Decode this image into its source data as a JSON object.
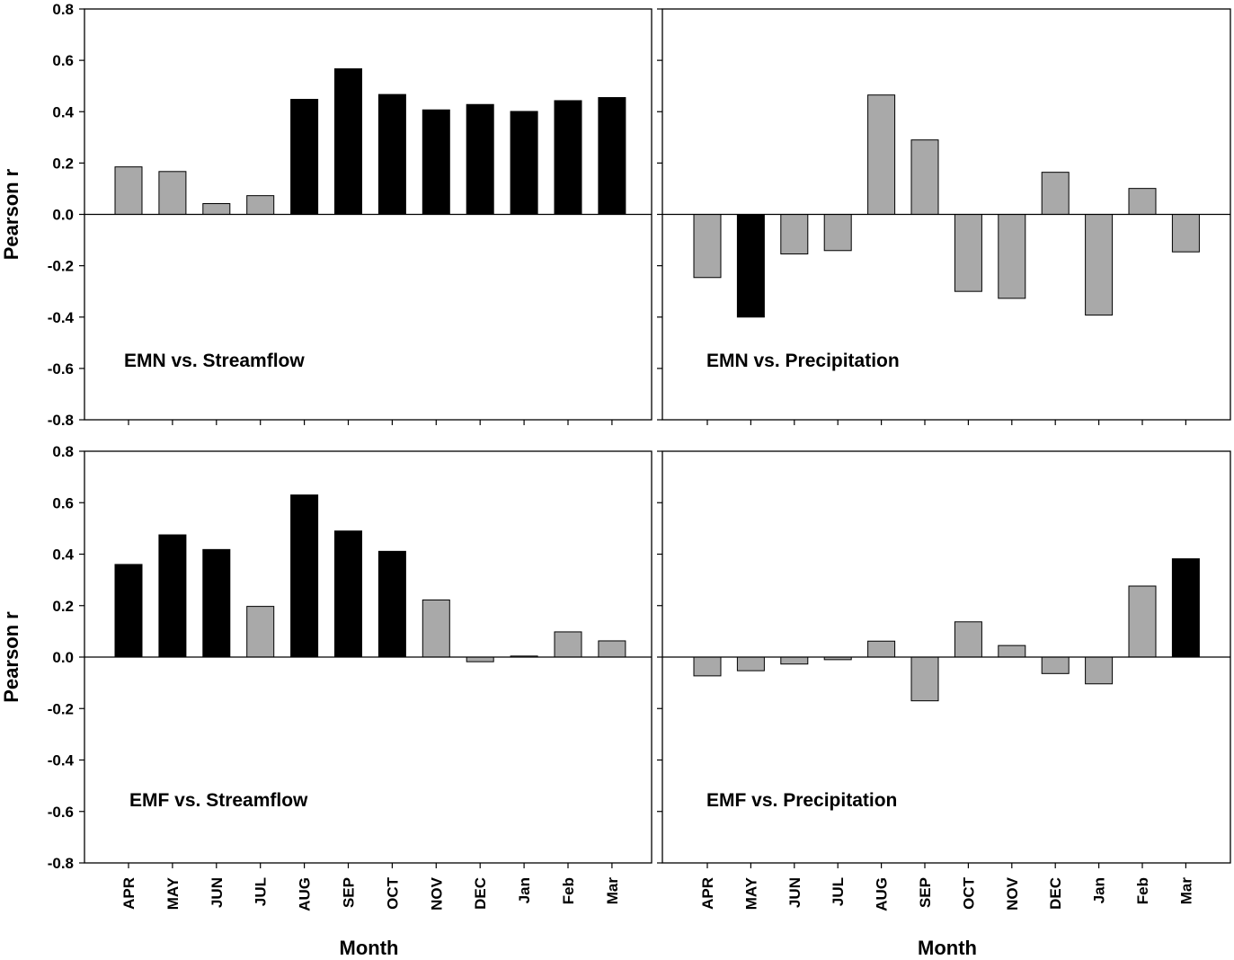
{
  "colors": {
    "significant": "#000000",
    "not_significant": "#a9a9a9",
    "axis": "#000000",
    "background": "#ffffff"
  },
  "chart_data": [
    {
      "type": "bar",
      "title": "EMN vs. Streamflow",
      "xlabel": "",
      "ylabel": "Pearson r",
      "ylim": [
        -0.8,
        0.8
      ],
      "yticks": [
        "0.8",
        "0.6",
        "0.4",
        "0.2",
        "0.0",
        "-0.2",
        "-0.4",
        "-0.6",
        "-0.8"
      ],
      "categories": [
        "APR",
        "MAY",
        "JUN",
        "JUL",
        "AUG",
        "SEP",
        "OCT",
        "NOV",
        "DEC",
        "Jan",
        "Feb",
        "Mar"
      ],
      "values": [
        0.185,
        0.167,
        0.042,
        0.073,
        0.448,
        0.567,
        0.467,
        0.407,
        0.428,
        0.401,
        0.443,
        0.455
      ],
      "significant": [
        false,
        false,
        false,
        false,
        true,
        true,
        true,
        true,
        true,
        true,
        true,
        true
      ]
    },
    {
      "type": "bar",
      "title": "EMN vs. Precipitation",
      "xlabel": "",
      "ylabel": "",
      "ylim": [
        -0.8,
        0.8
      ],
      "categories": [
        "APR",
        "MAY",
        "JUN",
        "JUL",
        "AUG",
        "SEP",
        "OCT",
        "NOV",
        "DEC",
        "Jan",
        "Feb",
        "Mar"
      ],
      "values": [
        -0.246,
        -0.4,
        -0.154,
        -0.141,
        0.465,
        0.29,
        -0.3,
        -0.327,
        0.164,
        -0.392,
        0.101,
        -0.146
      ],
      "significant": [
        false,
        true,
        false,
        false,
        false,
        false,
        false,
        false,
        false,
        false,
        false,
        false
      ]
    },
    {
      "type": "bar",
      "title": "EMF vs. Streamflow",
      "xlabel": "Month",
      "ylabel": "Pearson r",
      "ylim": [
        -0.8,
        0.8
      ],
      "yticks": [
        "0.8",
        "0.6",
        "0.4",
        "0.2",
        "0.0",
        "-0.2",
        "-0.4",
        "-0.6",
        "-0.8"
      ],
      "categories": [
        "APR",
        "MAY",
        "JUN",
        "JUL",
        "AUG",
        "SEP",
        "OCT",
        "NOV",
        "DEC",
        "Jan",
        "Feb",
        "Mar"
      ],
      "values": [
        0.36,
        0.475,
        0.418,
        0.197,
        0.63,
        0.49,
        0.411,
        0.222,
        -0.018,
        0.004,
        0.098,
        0.063
      ],
      "significant": [
        true,
        true,
        true,
        false,
        true,
        true,
        true,
        false,
        false,
        false,
        false,
        false
      ]
    },
    {
      "type": "bar",
      "title": "EMF vs. Precipitation",
      "xlabel": "Month",
      "ylabel": "",
      "ylim": [
        -0.8,
        0.8
      ],
      "categories": [
        "APR",
        "MAY",
        "JUN",
        "JUL",
        "AUG",
        "SEP",
        "OCT",
        "NOV",
        "DEC",
        "Jan",
        "Feb",
        "Mar"
      ],
      "values": [
        -0.073,
        -0.053,
        -0.027,
        -0.01,
        0.062,
        -0.17,
        0.137,
        0.045,
        -0.064,
        -0.104,
        0.276,
        0.382
      ],
      "significant": [
        false,
        false,
        false,
        false,
        false,
        false,
        false,
        false,
        false,
        false,
        false,
        true
      ]
    }
  ]
}
